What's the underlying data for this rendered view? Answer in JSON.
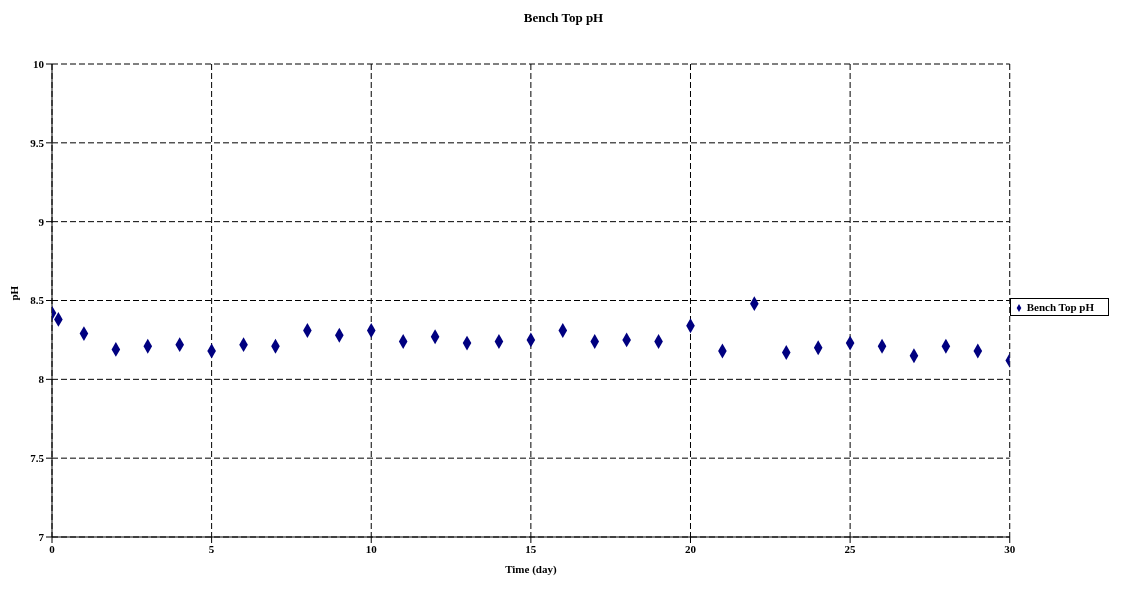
{
  "chart_data": {
    "type": "scatter",
    "title": "Bench Top pH",
    "xlabel": "Time (day)",
    "ylabel": "pH",
    "xlim": [
      0,
      30
    ],
    "xticks": [
      0,
      5,
      10,
      15,
      20,
      25,
      30
    ],
    "ylim": [
      7,
      10
    ],
    "yticks": [
      7,
      7.5,
      8,
      8.5,
      9,
      9.5,
      10
    ],
    "grid": true,
    "legend": "right",
    "marker": "diamond",
    "series": [
      {
        "name": "Bench Top pH",
        "color": "#000080",
        "x": [
          0,
          0.2,
          1,
          2,
          3,
          4,
          5,
          6,
          7,
          8,
          9,
          10,
          11,
          12,
          13,
          14,
          15,
          16,
          17,
          18,
          19,
          20,
          21,
          22,
          23,
          24,
          25,
          26,
          27,
          28,
          29,
          30
        ],
        "values": [
          8.42,
          8.38,
          8.29,
          8.19,
          8.21,
          8.22,
          8.18,
          8.22,
          8.21,
          8.31,
          8.28,
          8.31,
          8.24,
          8.27,
          8.23,
          8.24,
          8.25,
          8.31,
          8.24,
          8.25,
          8.24,
          8.34,
          8.18,
          8.48,
          8.17,
          8.2,
          8.23,
          8.21,
          8.15,
          8.21,
          8.18,
          8.12
        ]
      }
    ]
  }
}
